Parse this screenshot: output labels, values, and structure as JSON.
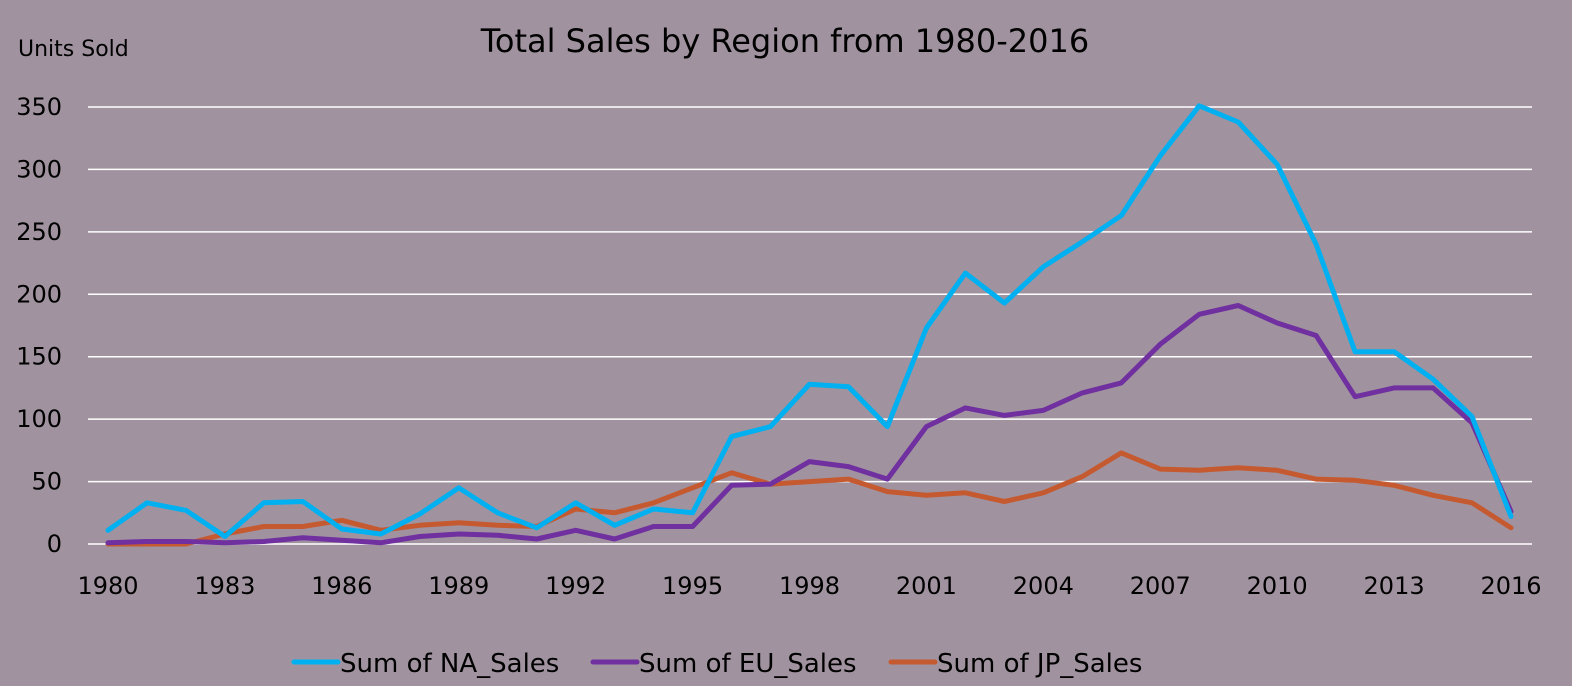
{
  "chart_data": {
    "type": "line",
    "title": "Total Sales by Region from 1980-2016",
    "ylabel": "Units Sold",
    "xlabel": "",
    "ylim": [
      0,
      350
    ],
    "yticks": [
      0,
      50,
      100,
      150,
      200,
      250,
      300,
      350
    ],
    "xticks": [
      1980,
      1983,
      1986,
      1989,
      1992,
      1995,
      1998,
      2001,
      2004,
      2007,
      2010,
      2013,
      2016
    ],
    "grid": true,
    "legend": "bottom",
    "x": [
      1980,
      1981,
      1982,
      1983,
      1984,
      1985,
      1986,
      1987,
      1988,
      1989,
      1990,
      1991,
      1992,
      1993,
      1994,
      1995,
      1996,
      1997,
      1998,
      1999,
      2000,
      2001,
      2002,
      2003,
      2004,
      2005,
      2006,
      2007,
      2008,
      2009,
      2010,
      2011,
      2012,
      2013,
      2014,
      2015,
      2016
    ],
    "series": [
      {
        "name": "Sum of NA_Sales",
        "color": "#00b0f0",
        "values": [
          11,
          33,
          27,
          6,
          33,
          34,
          12,
          8,
          24,
          45,
          25,
          13,
          33,
          15,
          28,
          25,
          86,
          94,
          128,
          126,
          94,
          173,
          217,
          193,
          222,
          242,
          263,
          311,
          351,
          338,
          304,
          240,
          154,
          154,
          132,
          102,
          22
        ]
      },
      {
        "name": "Sum of EU_Sales",
        "color": "#7030a0",
        "values": [
          1,
          2,
          2,
          1,
          2,
          5,
          3,
          1,
          6,
          8,
          7,
          4,
          11,
          4,
          14,
          14,
          47,
          48,
          66,
          62,
          52,
          94,
          109,
          103,
          107,
          121,
          129,
          160,
          184,
          191,
          177,
          167,
          118,
          125,
          125,
          97,
          26
        ]
      },
      {
        "name": "Sum of JP_Sales",
        "color": "#c55a30",
        "values": [
          0,
          0,
          0,
          8,
          14,
          14,
          19,
          11,
          15,
          17,
          15,
          14,
          28,
          25,
          33,
          45,
          57,
          48,
          50,
          52,
          42,
          39,
          41,
          34,
          41,
          54,
          73,
          60,
          59,
          61,
          59,
          52,
          51,
          47,
          39,
          33,
          13
        ]
      }
    ]
  }
}
